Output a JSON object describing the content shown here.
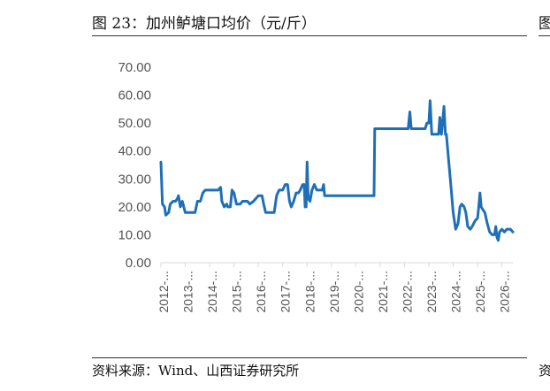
{
  "figure": {
    "title": "图 23：加州鲈塘口均价（元/斤）",
    "source": "资料来源：Wind、山西证券研究所",
    "edge_top_glyph": "图",
    "edge_bottom_glyph": "资"
  },
  "chart_data": {
    "type": "line",
    "title": "",
    "xlabel": "",
    "ylabel": "",
    "ylim": [
      0,
      70
    ],
    "yticks": [
      "0.00",
      "10.00",
      "20.00",
      "30.00",
      "40.00",
      "50.00",
      "60.00",
      "70.00"
    ],
    "xticks": [
      "2012-...",
      "2013-...",
      "2014-...",
      "2015-...",
      "2016-...",
      "2017-...",
      "2018-...",
      "2019-...",
      "2020-...",
      "2021-...",
      "2022-...",
      "2023-...",
      "2024-...",
      "2025-...",
      "2026-..."
    ],
    "grid": false,
    "line_color": "#1f6fb8",
    "x_range": [
      2012.0,
      2026.45
    ],
    "series": [
      {
        "values": [
          [
            2012.0,
            36
          ],
          [
            2012.06,
            21
          ],
          [
            2012.15,
            20
          ],
          [
            2012.2,
            17
          ],
          [
            2012.32,
            18
          ],
          [
            2012.38,
            21
          ],
          [
            2012.5,
            22
          ],
          [
            2012.6,
            22
          ],
          [
            2012.68,
            23
          ],
          [
            2012.72,
            24
          ],
          [
            2012.8,
            20
          ],
          [
            2012.88,
            22
          ],
          [
            2013.0,
            18
          ],
          [
            2013.4,
            18
          ],
          [
            2013.5,
            22
          ],
          [
            2013.62,
            22
          ],
          [
            2013.72,
            25
          ],
          [
            2013.82,
            26
          ],
          [
            2014.0,
            26
          ],
          [
            2014.35,
            26
          ],
          [
            2014.45,
            27
          ],
          [
            2014.5,
            22
          ],
          [
            2014.6,
            20
          ],
          [
            2014.7,
            21
          ],
          [
            2014.75,
            20
          ],
          [
            2014.85,
            20
          ],
          [
            2014.92,
            26
          ],
          [
            2015.0,
            25
          ],
          [
            2015.1,
            21
          ],
          [
            2015.25,
            21
          ],
          [
            2015.35,
            22
          ],
          [
            2015.55,
            22
          ],
          [
            2015.65,
            21
          ],
          [
            2015.8,
            22
          ],
          [
            2015.9,
            23
          ],
          [
            2016.0,
            24
          ],
          [
            2016.15,
            24
          ],
          [
            2016.22,
            21
          ],
          [
            2016.3,
            18
          ],
          [
            2016.65,
            18
          ],
          [
            2016.75,
            24
          ],
          [
            2016.85,
            26
          ],
          [
            2017.0,
            26
          ],
          [
            2017.1,
            28
          ],
          [
            2017.2,
            28
          ],
          [
            2017.28,
            22
          ],
          [
            2017.35,
            20
          ],
          [
            2017.45,
            22
          ],
          [
            2017.55,
            25
          ],
          [
            2017.65,
            25
          ],
          [
            2017.72,
            26
          ],
          [
            2017.82,
            28
          ],
          [
            2017.88,
            28
          ],
          [
            2017.92,
            20
          ],
          [
            2017.96,
            20
          ],
          [
            2018.0,
            36
          ],
          [
            2018.05,
            23
          ],
          [
            2018.12,
            22
          ],
          [
            2018.2,
            26
          ],
          [
            2018.3,
            28
          ],
          [
            2018.4,
            26
          ],
          [
            2018.55,
            26
          ],
          [
            2018.62,
            26
          ],
          [
            2018.68,
            28
          ],
          [
            2018.72,
            24
          ],
          [
            2019.0,
            24
          ],
          [
            2020.0,
            24
          ],
          [
            2020.75,
            24
          ],
          [
            2020.78,
            48
          ],
          [
            2021.5,
            48
          ],
          [
            2022.0,
            48
          ],
          [
            2022.15,
            48
          ],
          [
            2022.22,
            54
          ],
          [
            2022.28,
            48
          ],
          [
            2022.85,
            48
          ],
          [
            2022.92,
            50
          ],
          [
            2023.0,
            50
          ],
          [
            2023.05,
            58
          ],
          [
            2023.12,
            46
          ],
          [
            2023.4,
            46
          ],
          [
            2023.45,
            52
          ],
          [
            2023.52,
            46
          ],
          [
            2023.62,
            56
          ],
          [
            2023.68,
            46
          ],
          [
            2023.72,
            46
          ],
          [
            2023.8,
            38
          ],
          [
            2023.9,
            28
          ],
          [
            2024.0,
            18
          ],
          [
            2024.1,
            12
          ],
          [
            2024.2,
            14
          ],
          [
            2024.28,
            20
          ],
          [
            2024.35,
            21
          ],
          [
            2024.45,
            20
          ],
          [
            2024.52,
            18
          ],
          [
            2024.6,
            13
          ],
          [
            2024.7,
            12
          ],
          [
            2024.78,
            13
          ],
          [
            2024.9,
            15
          ],
          [
            2025.0,
            16
          ],
          [
            2025.05,
            20
          ],
          [
            2025.1,
            25
          ],
          [
            2025.15,
            20
          ],
          [
            2025.22,
            19
          ],
          [
            2025.3,
            18
          ],
          [
            2025.4,
            14
          ],
          [
            2025.5,
            11
          ],
          [
            2025.6,
            10
          ],
          [
            2025.7,
            10
          ],
          [
            2025.75,
            13
          ],
          [
            2025.8,
            9
          ],
          [
            2025.85,
            8
          ],
          [
            2025.9,
            11
          ],
          [
            2026.0,
            12
          ],
          [
            2026.1,
            11
          ],
          [
            2026.2,
            12
          ],
          [
            2026.35,
            12
          ],
          [
            2026.45,
            11
          ]
        ]
      }
    ]
  }
}
